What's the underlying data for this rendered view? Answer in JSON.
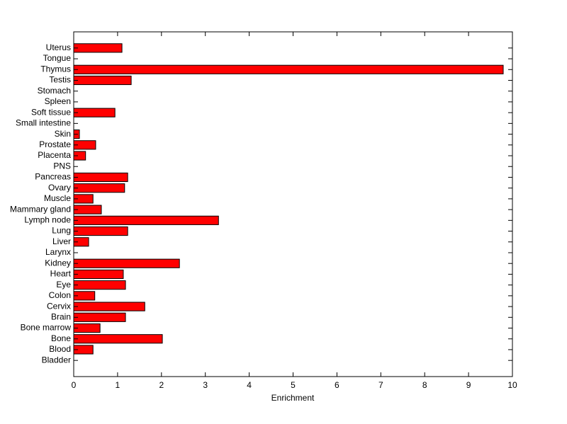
{
  "chart_data": {
    "type": "barh",
    "xlabel": "Enrichment",
    "categories": [
      "Uterus",
      "Tongue",
      "Thymus",
      "Testis",
      "Stomach",
      "Spleen",
      "Soft tissue",
      "Small intestine",
      "Skin",
      "Prostate",
      "Placenta",
      "PNS",
      "Pancreas",
      "Ovary",
      "Muscle",
      "Mammary gland",
      "Lymph node",
      "Lung",
      "Liver",
      "Larynx",
      "Kidney",
      "Heart",
      "Eye",
      "Colon",
      "Cervix",
      "Brain",
      "Bone marrow",
      "Bone",
      "Blood",
      "Bladder"
    ],
    "values": [
      1.1,
      0,
      9.79,
      1.31,
      0,
      0,
      0.94,
      0,
      0.13,
      0.5,
      0.27,
      0,
      1.23,
      1.16,
      0.44,
      0.63,
      3.3,
      1.23,
      0.34,
      0,
      2.41,
      1.13,
      1.18,
      0.48,
      1.62,
      1.18,
      0.6,
      2.02,
      0.44,
      0
    ],
    "color": "#ff0000",
    "xlim": [
      0,
      10
    ],
    "xticks": [
      0,
      1,
      2,
      3,
      4,
      5,
      6,
      7,
      8,
      9,
      10
    ]
  }
}
